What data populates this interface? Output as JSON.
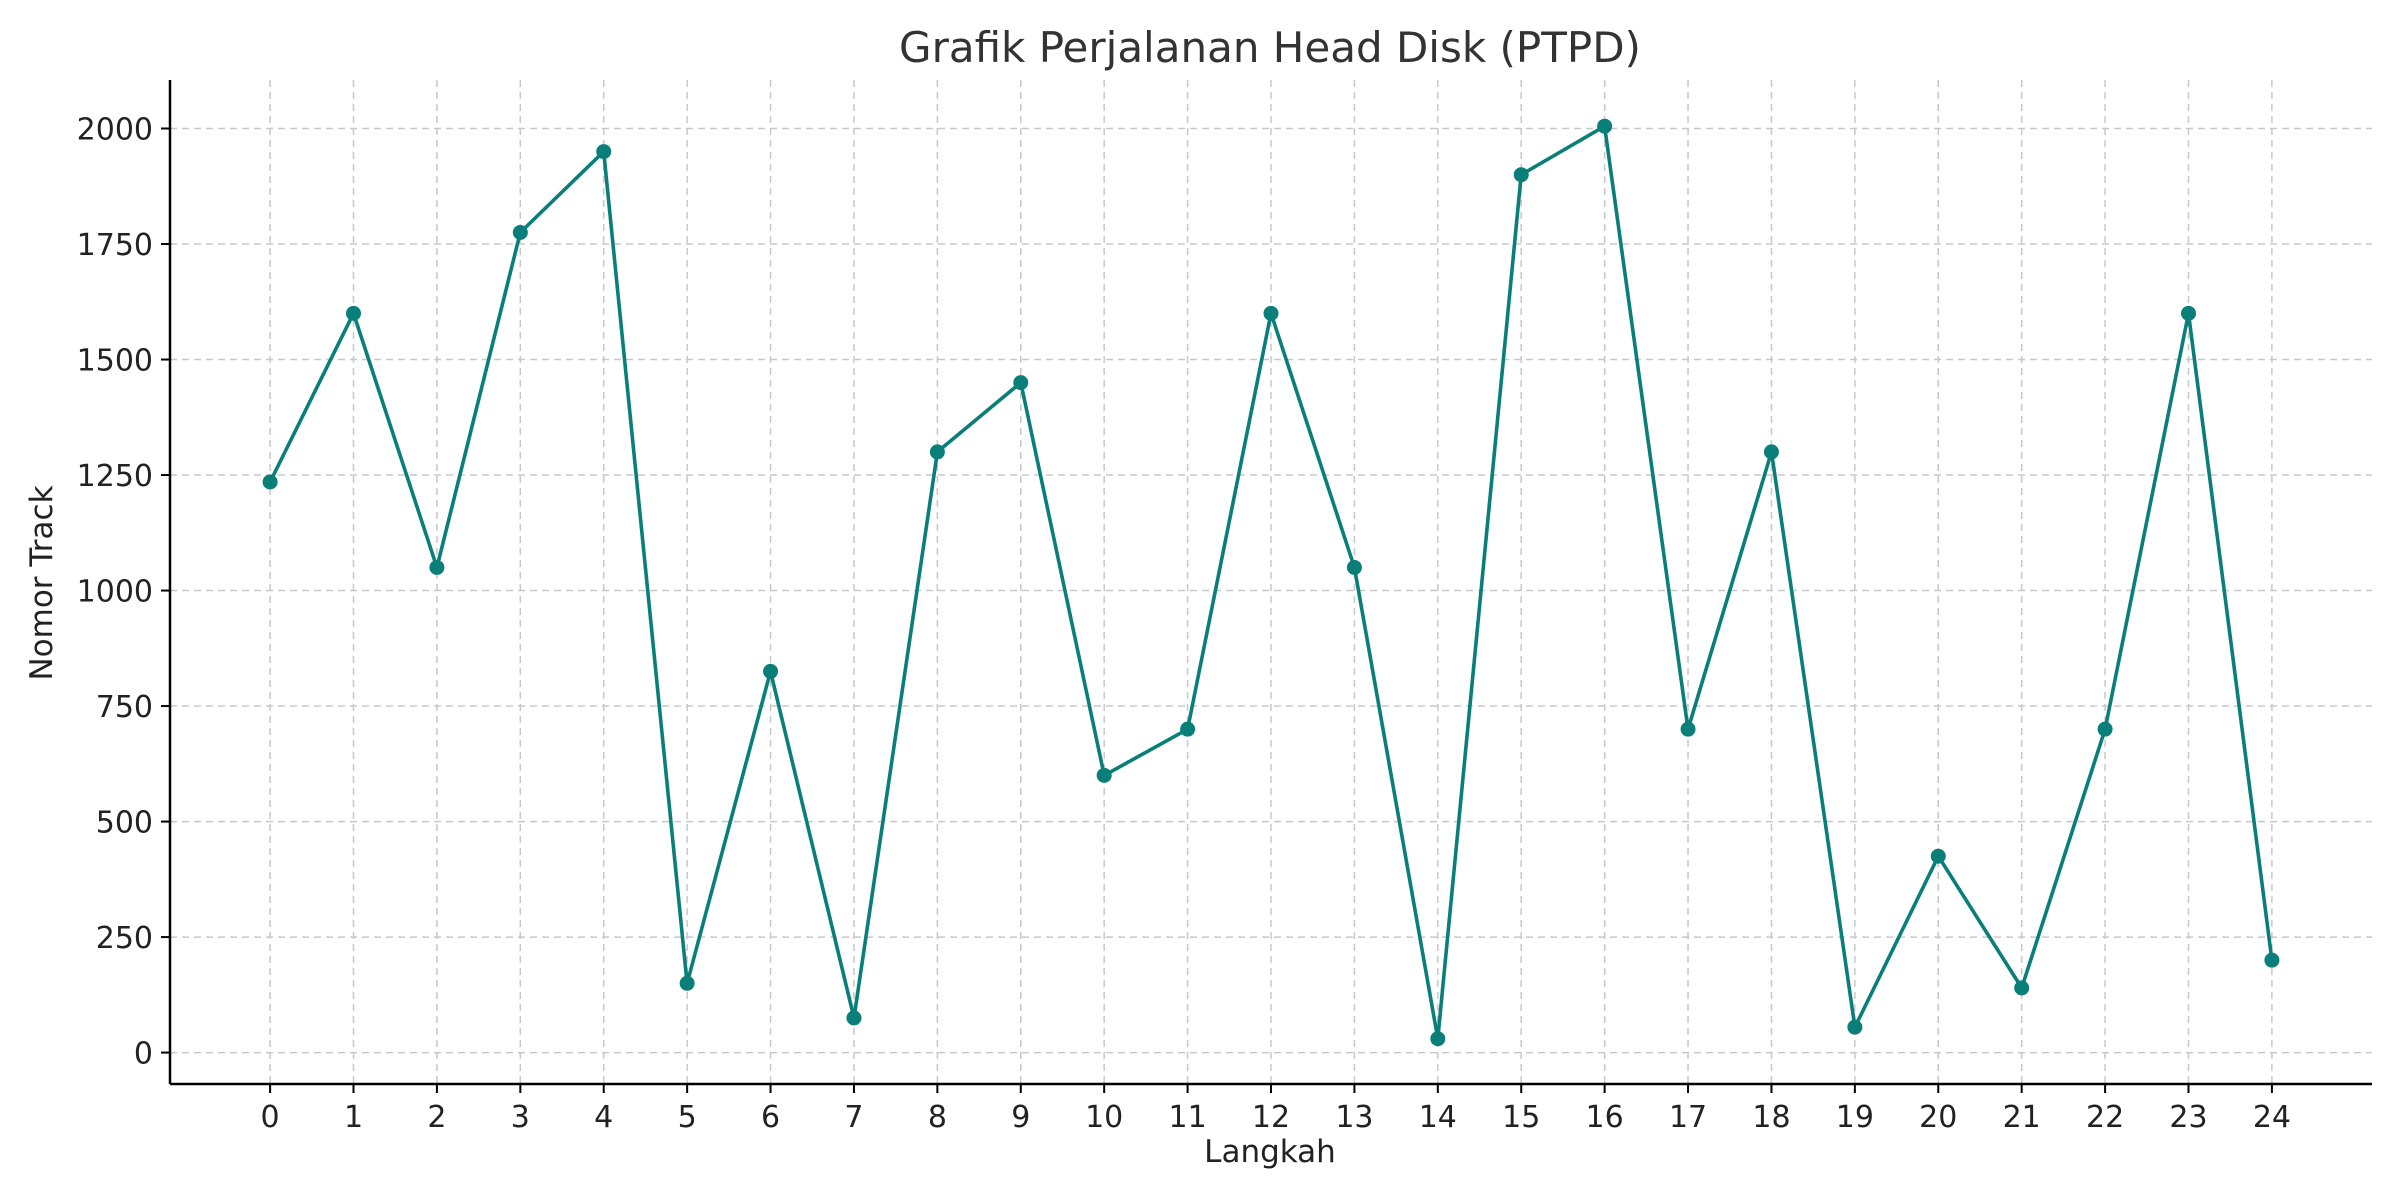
{
  "chart_data": {
    "type": "line",
    "title": "Grafik Perjalanan Head Disk (PTPD)",
    "xlabel": "Langkah",
    "ylabel": "Nomor Track",
    "x": [
      0,
      1,
      2,
      3,
      4,
      5,
      6,
      7,
      8,
      9,
      10,
      11,
      12,
      13,
      14,
      15,
      16,
      17,
      18,
      19,
      20,
      21,
      22,
      23,
      24
    ],
    "series": [
      {
        "values": [
          1235,
          1600,
          1050,
          1775,
          1950,
          150,
          825,
          75,
          1300,
          1450,
          600,
          700,
          1600,
          1050,
          30,
          1900,
          2005,
          700,
          1300,
          55,
          425,
          140,
          700,
          1600,
          200
        ]
      }
    ],
    "xlim": [
      -1.2,
      25.2
    ],
    "ylim": [
      -68,
      2105
    ],
    "yticks": [
      0,
      250,
      500,
      750,
      1000,
      1250,
      1500,
      1750,
      2000
    ],
    "xticks": [
      0,
      1,
      2,
      3,
      4,
      5,
      6,
      7,
      8,
      9,
      10,
      11,
      12,
      13,
      14,
      15,
      16,
      17,
      18,
      19,
      20,
      21,
      22,
      23,
      24
    ],
    "grid": true,
    "line_color": "#0a7f7a"
  }
}
